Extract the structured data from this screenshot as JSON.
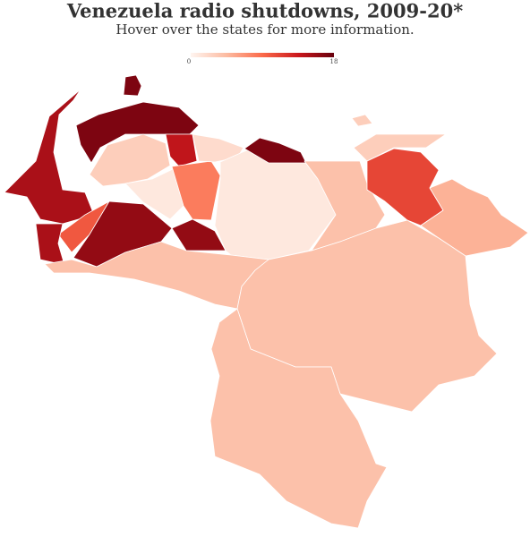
{
  "title": "Venezuela radio shutdowns, 2009-20*",
  "subtitle": "Hover over the states for more information.",
  "scale": {
    "min": 0,
    "max": 18,
    "colors": [
      "#fff5f0",
      "#fcbba1",
      "#fb6a4a",
      "#cb181d",
      "#67000d"
    ]
  },
  "values": [
    15,
    17,
    17,
    3,
    14,
    1,
    10,
    15,
    16,
    16,
    8,
    2,
    1,
    17,
    4,
    3,
    11,
    5,
    4,
    4,
    4,
    3
  ]
}
